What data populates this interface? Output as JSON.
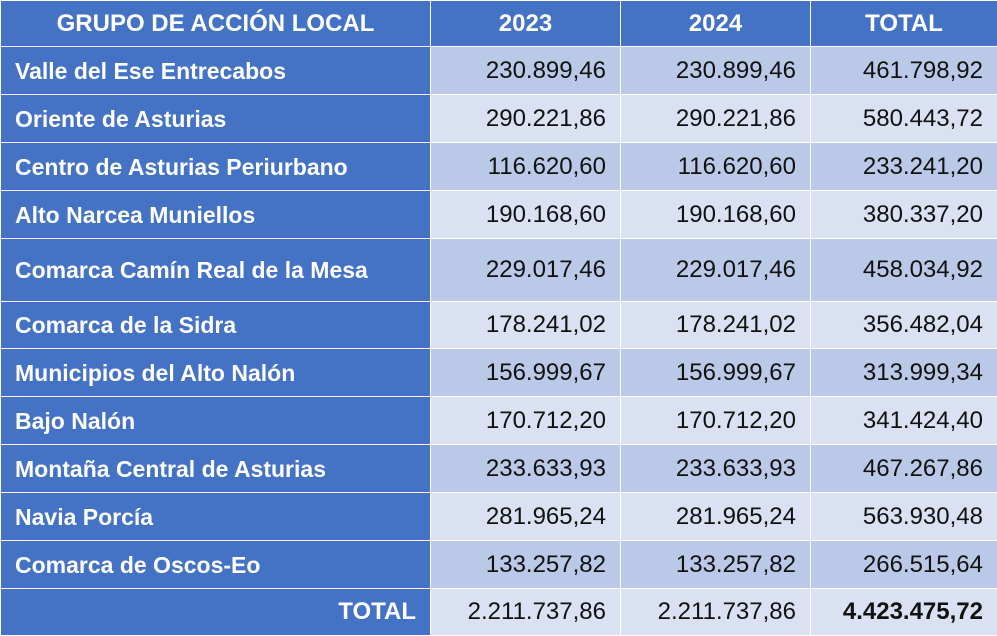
{
  "colors": {
    "header": "#4472C4",
    "row_dark": "#B9C9E7",
    "row_light": "#D9E1F2"
  },
  "headers": [
    "GRUPO DE ACCIÓN LOCAL",
    "2023",
    "2024",
    "TOTAL"
  ],
  "rows": [
    {
      "name": "Valle del Ese Entrecabos",
      "y2023": "230.899,46",
      "y2024": "230.899,46",
      "total": "461.798,92"
    },
    {
      "name": "Oriente de Asturias",
      "y2023": "290.221,86",
      "y2024": "290.221,86",
      "total": "580.443,72"
    },
    {
      "name": "Centro de Asturias Periurbano",
      "y2023": "116.620,60",
      "y2024": "116.620,60",
      "total": "233.241,20"
    },
    {
      "name": "Alto Narcea Muniellos",
      "y2023": "190.168,60",
      "y2024": "190.168,60",
      "total": "380.337,20"
    },
    {
      "name": "Comarca Camín Real de la Mesa",
      "y2023": "229.017,46",
      "y2024": "229.017,46",
      "total": "458.034,92"
    },
    {
      "name": "Comarca de la Sidra",
      "y2023": "178.241,02",
      "y2024": "178.241,02",
      "total": "356.482,04"
    },
    {
      "name": "Municipios del Alto Nalón",
      "y2023": "156.999,67",
      "y2024": "156.999,67",
      "total": "313.999,34"
    },
    {
      "name": "Bajo Nalón",
      "y2023": "170.712,20",
      "y2024": "170.712,20",
      "total": "341.424,40"
    },
    {
      "name": "Montaña Central de Asturias",
      "y2023": "233.633,93",
      "y2024": "233.633,93",
      "total": "467.267,86"
    },
    {
      "name": "Navia Porcía",
      "y2023": "281.965,24",
      "y2024": "281.965,24",
      "total": "563.930,48"
    },
    {
      "name": "Comarca de Oscos-Eo",
      "y2023": "133.257,82",
      "y2024": "133.257,82",
      "total": "266.515,64"
    }
  ],
  "total_row": {
    "label": "TOTAL",
    "y2023": "2.211.737,86",
    "y2024": "2.211.737,86",
    "total": "4.423.475,72"
  }
}
